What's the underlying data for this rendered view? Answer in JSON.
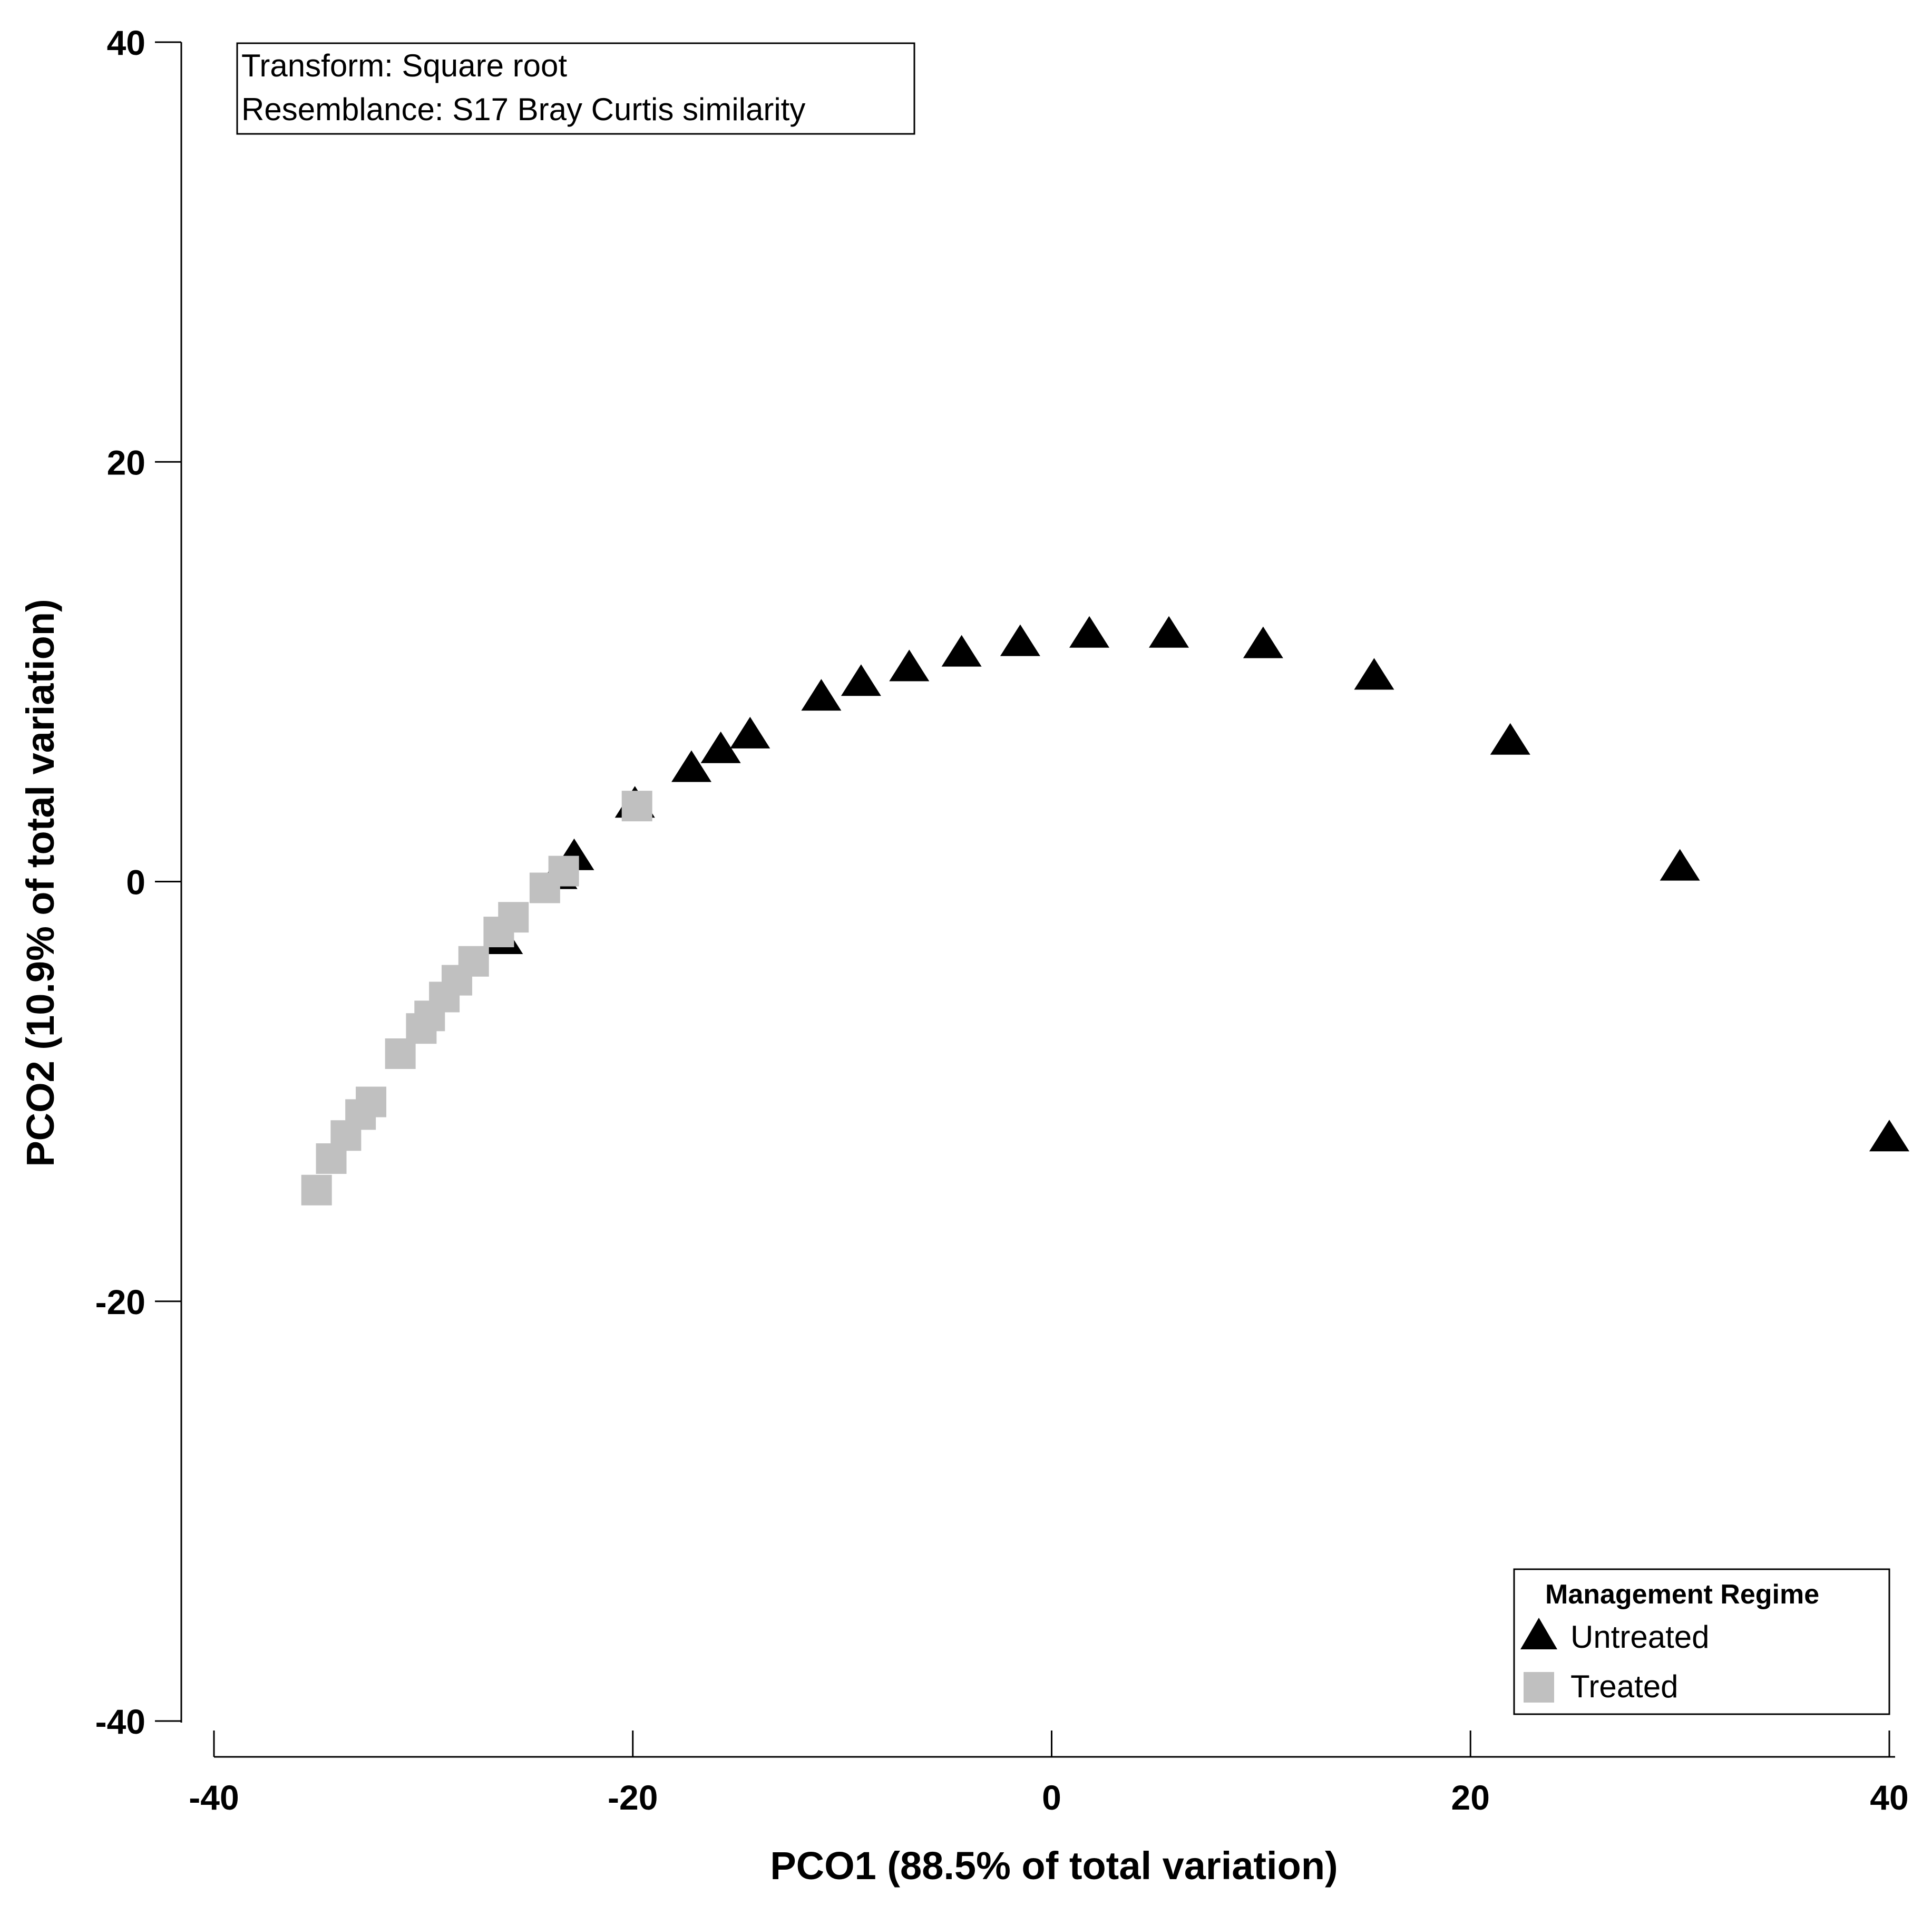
{
  "chart_data": {
    "type": "scatter",
    "title": "",
    "xlabel": "PCO1 (88.5% of total variation)",
    "ylabel": "PCO2 (10.9% of total variation)",
    "xlim": [
      -40,
      40
    ],
    "ylim": [
      -40,
      40
    ],
    "xticks": [
      "-40",
      "-20",
      "0",
      "20",
      "40"
    ],
    "yticks": [
      "40",
      "20",
      "0",
      "-20",
      "-40"
    ],
    "grid": false,
    "annotation": {
      "line1": "Transform: Square root",
      "line2": "Resemblance: S17 Bray Curtis similarity"
    },
    "legend": {
      "title": "Management Regime",
      "position": "bottom-right"
    },
    "series": [
      {
        "name": "Untreated",
        "marker": "triangle",
        "color": "#000000",
        "points": [
          [
            40.0,
            -12.1
          ],
          [
            30.0,
            0.8
          ],
          [
            21.9,
            6.8
          ],
          [
            15.4,
            9.9
          ],
          [
            10.1,
            11.4
          ],
          [
            5.6,
            11.9
          ],
          [
            1.8,
            11.9
          ],
          [
            -1.5,
            11.5
          ],
          [
            -4.3,
            11.0
          ],
          [
            -6.8,
            10.3
          ],
          [
            -9.1,
            9.6
          ],
          [
            -11.0,
            8.9
          ],
          [
            -14.4,
            7.1
          ],
          [
            -15.8,
            6.4
          ],
          [
            -17.2,
            5.5
          ],
          [
            -19.9,
            3.8
          ],
          [
            -22.8,
            1.3
          ],
          [
            -23.6,
            0.4
          ],
          [
            -26.2,
            -2.7
          ]
        ]
      },
      {
        "name": "Treated",
        "marker": "square",
        "color": "#c0c0c0",
        "points": [
          [
            -19.8,
            3.6
          ],
          [
            -23.3,
            0.5
          ],
          [
            -24.2,
            -0.3
          ],
          [
            -25.7,
            -1.7
          ],
          [
            -26.4,
            -2.4
          ],
          [
            -27.6,
            -3.8
          ],
          [
            -28.4,
            -4.7
          ],
          [
            -29.0,
            -5.5
          ],
          [
            -29.7,
            -6.4
          ],
          [
            -30.1,
            -7.0
          ],
          [
            -31.1,
            -8.2
          ],
          [
            -32.5,
            -10.5
          ],
          [
            -33.0,
            -11.1
          ],
          [
            -33.7,
            -12.1
          ],
          [
            -34.4,
            -13.2
          ],
          [
            -35.1,
            -14.7
          ]
        ]
      }
    ]
  }
}
